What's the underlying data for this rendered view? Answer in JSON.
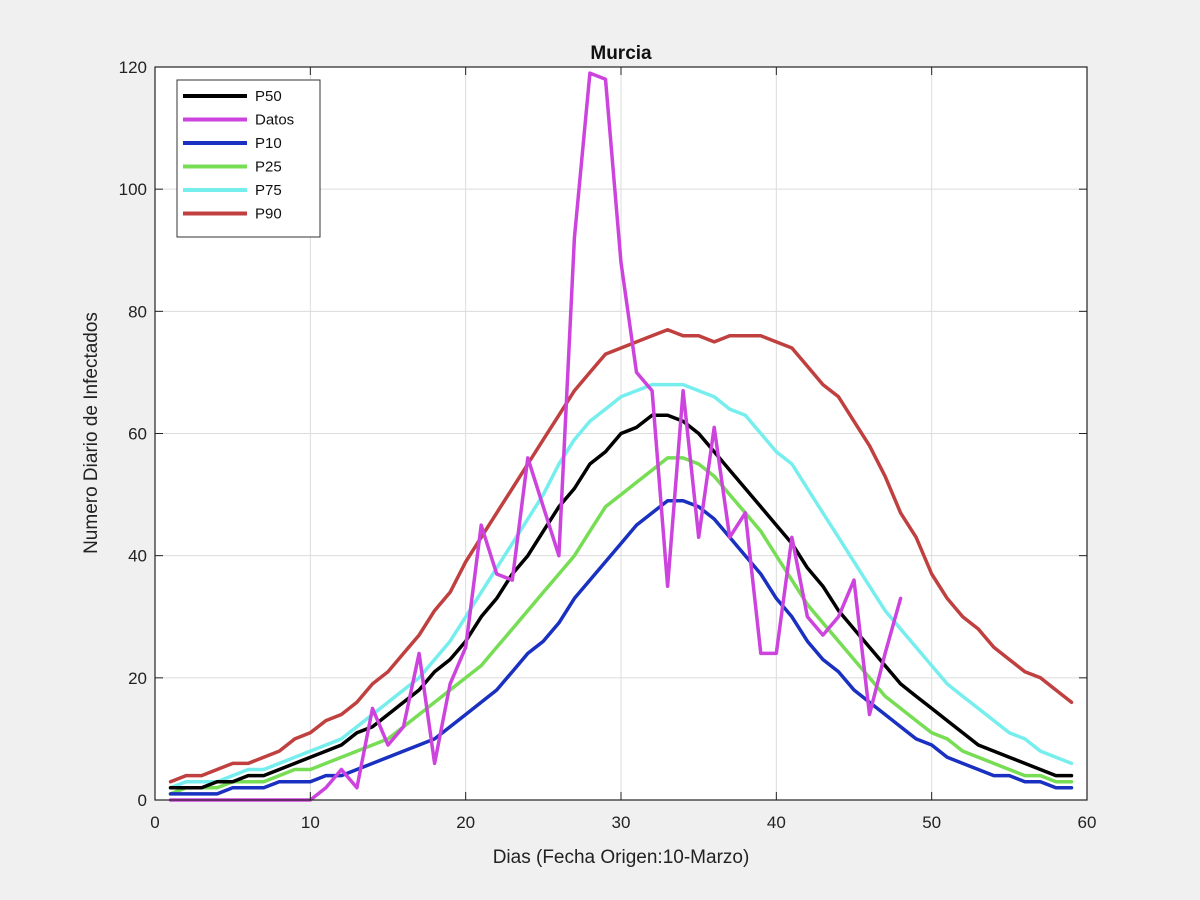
{
  "chart_data": {
    "type": "line",
    "title": "Murcia",
    "xlabel": "Dias (Fecha Origen:10-Marzo)",
    "ylabel": "Numero Diario de Infectados",
    "xlim": [
      0,
      60
    ],
    "ylim": [
      0,
      120
    ],
    "xticks": [
      0,
      10,
      20,
      30,
      40,
      50,
      60
    ],
    "yticks": [
      0,
      20,
      40,
      60,
      80,
      100,
      120
    ],
    "grid": true,
    "legend_position": "top-left",
    "series": [
      {
        "name": "P50",
        "color": "#000000",
        "x": [
          1,
          2,
          3,
          4,
          5,
          6,
          7,
          8,
          9,
          10,
          11,
          12,
          13,
          14,
          15,
          16,
          17,
          18,
          19,
          20,
          21,
          22,
          23,
          24,
          25,
          26,
          27,
          28,
          29,
          30,
          31,
          32,
          33,
          34,
          35,
          36,
          37,
          38,
          39,
          40,
          41,
          42,
          43,
          44,
          45,
          46,
          47,
          48,
          49,
          50,
          51,
          52,
          53,
          54,
          55,
          56,
          57,
          58,
          59
        ],
        "y": [
          2,
          2,
          2,
          3,
          3,
          4,
          4,
          5,
          6,
          7,
          8,
          9,
          11,
          12,
          14,
          16,
          18,
          21,
          23,
          26,
          30,
          33,
          37,
          40,
          44,
          48,
          51,
          55,
          57,
          60,
          61,
          63,
          63,
          62,
          60,
          57,
          54,
          51,
          48,
          45,
          42,
          38,
          35,
          31,
          28,
          25,
          22,
          19,
          17,
          15,
          13,
          11,
          9,
          8,
          7,
          6,
          5,
          4,
          4
        ]
      },
      {
        "name": "Datos",
        "color": "#cc44dd",
        "x": [
          1,
          2,
          3,
          4,
          5,
          6,
          7,
          8,
          9,
          10,
          11,
          12,
          13,
          14,
          15,
          16,
          17,
          18,
          19,
          20,
          21,
          22,
          23,
          24,
          25,
          26,
          27,
          28,
          29,
          30,
          31,
          32,
          33,
          34,
          35,
          36,
          37,
          38,
          39,
          40,
          41,
          42,
          43,
          44,
          45,
          46,
          47,
          48
        ],
        "y": [
          0,
          0,
          0,
          0,
          0,
          0,
          0,
          0,
          0,
          0,
          2,
          5,
          2,
          15,
          9,
          12,
          24,
          6,
          19,
          25,
          45,
          37,
          36,
          56,
          48,
          40,
          92,
          119,
          118,
          88,
          70,
          67,
          35,
          67,
          43,
          61,
          43,
          47,
          24,
          24,
          43,
          30,
          27,
          30,
          36,
          14,
          24,
          33
        ]
      },
      {
        "name": "P10",
        "color": "#1a30c0",
        "x": [
          1,
          2,
          3,
          4,
          5,
          6,
          7,
          8,
          9,
          10,
          11,
          12,
          13,
          14,
          15,
          16,
          17,
          18,
          19,
          20,
          21,
          22,
          23,
          24,
          25,
          26,
          27,
          28,
          29,
          30,
          31,
          32,
          33,
          34,
          35,
          36,
          37,
          38,
          39,
          40,
          41,
          42,
          43,
          44,
          45,
          46,
          47,
          48,
          49,
          50,
          51,
          52,
          53,
          54,
          55,
          56,
          57,
          58,
          59
        ],
        "y": [
          1,
          1,
          1,
          1,
          2,
          2,
          2,
          3,
          3,
          3,
          4,
          4,
          5,
          6,
          7,
          8,
          9,
          10,
          12,
          14,
          16,
          18,
          21,
          24,
          26,
          29,
          33,
          36,
          39,
          42,
          45,
          47,
          49,
          49,
          48,
          46,
          43,
          40,
          37,
          33,
          30,
          26,
          23,
          21,
          18,
          16,
          14,
          12,
          10,
          9,
          7,
          6,
          5,
          4,
          4,
          3,
          3,
          2,
          2
        ]
      },
      {
        "name": "P25",
        "color": "#77dd55",
        "x": [
          1,
          2,
          3,
          4,
          5,
          6,
          7,
          8,
          9,
          10,
          11,
          12,
          13,
          14,
          15,
          16,
          17,
          18,
          19,
          20,
          21,
          22,
          23,
          24,
          25,
          26,
          27,
          28,
          29,
          30,
          31,
          32,
          33,
          34,
          35,
          36,
          37,
          38,
          39,
          40,
          41,
          42,
          43,
          44,
          45,
          46,
          47,
          48,
          49,
          50,
          51,
          52,
          53,
          54,
          55,
          56,
          57,
          58,
          59
        ],
        "y": [
          1,
          2,
          2,
          2,
          3,
          3,
          3,
          4,
          5,
          5,
          6,
          7,
          8,
          9,
          10,
          12,
          14,
          16,
          18,
          20,
          22,
          25,
          28,
          31,
          34,
          37,
          40,
          44,
          48,
          50,
          52,
          54,
          56,
          56,
          55,
          53,
          50,
          47,
          44,
          40,
          36,
          32,
          29,
          26,
          23,
          20,
          17,
          15,
          13,
          11,
          10,
          8,
          7,
          6,
          5,
          4,
          4,
          3,
          3
        ]
      },
      {
        "name": "P75",
        "color": "#77eeee",
        "x": [
          1,
          2,
          3,
          4,
          5,
          6,
          7,
          8,
          9,
          10,
          11,
          12,
          13,
          14,
          15,
          16,
          17,
          18,
          19,
          20,
          21,
          22,
          23,
          24,
          25,
          26,
          27,
          28,
          29,
          30,
          31,
          32,
          33,
          34,
          35,
          36,
          37,
          38,
          39,
          40,
          41,
          42,
          43,
          44,
          45,
          46,
          47,
          48,
          49,
          50,
          51,
          52,
          53,
          54,
          55,
          56,
          57,
          58,
          59
        ],
        "y": [
          2,
          3,
          3,
          3,
          4,
          5,
          5,
          6,
          7,
          8,
          9,
          10,
          12,
          14,
          16,
          18,
          20,
          23,
          26,
          30,
          34,
          38,
          42,
          46,
          50,
          55,
          59,
          62,
          64,
          66,
          67,
          68,
          68,
          68,
          67,
          66,
          64,
          63,
          60,
          57,
          55,
          51,
          47,
          43,
          39,
          35,
          31,
          28,
          25,
          22,
          19,
          17,
          15,
          13,
          11,
          10,
          8,
          7,
          6
        ]
      },
      {
        "name": "P90",
        "color": "#c04040",
        "x": [
          1,
          2,
          3,
          4,
          5,
          6,
          7,
          8,
          9,
          10,
          11,
          12,
          13,
          14,
          15,
          16,
          17,
          18,
          19,
          20,
          21,
          22,
          23,
          24,
          25,
          26,
          27,
          28,
          29,
          30,
          31,
          32,
          33,
          34,
          35,
          36,
          37,
          38,
          39,
          40,
          41,
          42,
          43,
          44,
          45,
          46,
          47,
          48,
          49,
          50,
          51,
          52,
          53,
          54,
          55,
          56,
          57,
          58,
          59
        ],
        "y": [
          3,
          4,
          4,
          5,
          6,
          6,
          7,
          8,
          10,
          11,
          13,
          14,
          16,
          19,
          21,
          24,
          27,
          31,
          34,
          39,
          43,
          47,
          51,
          55,
          59,
          63,
          67,
          70,
          73,
          74,
          75,
          76,
          77,
          76,
          76,
          75,
          76,
          76,
          76,
          75,
          74,
          71,
          68,
          66,
          62,
          58,
          53,
          47,
          43,
          37,
          33,
          30,
          28,
          25,
          23,
          21,
          20,
          18,
          16
        ]
      }
    ]
  }
}
